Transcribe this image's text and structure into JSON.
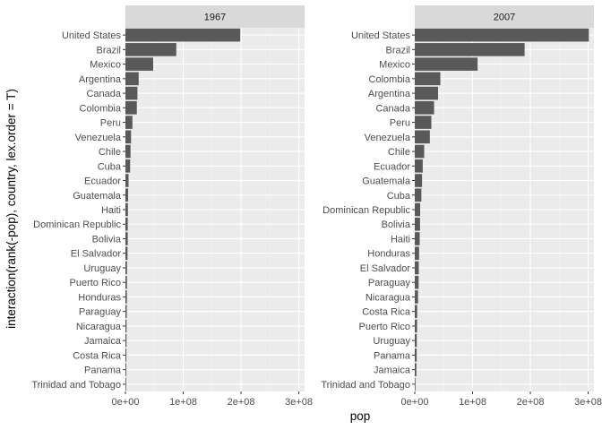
{
  "chart_data": {
    "type": "bar",
    "orientation": "horizontal",
    "xlabel": "pop",
    "ylabel": "interaction(rank(-pop), country, lex.order = T)",
    "xlim": [
      0,
      310000000
    ],
    "xticks": [
      0,
      100000000,
      200000000,
      300000000
    ],
    "xtick_labels": [
      "0e+00",
      "1e+08",
      "2e+08",
      "3e+08"
    ],
    "grid": true,
    "bar_color": "#595959",
    "panel_bg": "#ebebeb",
    "strip_bg": "#d9d9d9",
    "facets": [
      {
        "strip": "1967",
        "categories": [
          "United States",
          "Brazil",
          "Mexico",
          "Argentina",
          "Canada",
          "Colombia",
          "Peru",
          "Venezuela",
          "Chile",
          "Cuba",
          "Ecuador",
          "Guatemala",
          "Haiti",
          "Dominican Republic",
          "Bolivia",
          "El Salvador",
          "Uruguay",
          "Puerto Rico",
          "Honduras",
          "Paraguay",
          "Nicaragua",
          "Jamaica",
          "Costa Rica",
          "Panama",
          "Trinidad and Tobago"
        ],
        "values": [
          198712000,
          88049823,
          47995559,
          22934225,
          20819767,
          19764027,
          12132200,
          9709552,
          8858908,
          8139332,
          5432424,
          4690773,
          4318137,
          4049146,
          4040665,
          3647735,
          2748579,
          2648961,
          2500689,
          2287985,
          1981839,
          1861096,
          1588717,
          1405486,
          960155
        ]
      },
      {
        "strip": "2007",
        "categories": [
          "United States",
          "Brazil",
          "Mexico",
          "Colombia",
          "Argentina",
          "Canada",
          "Peru",
          "Venezuela",
          "Chile",
          "Ecuador",
          "Guatemala",
          "Cuba",
          "Dominican Republic",
          "Bolivia",
          "Haiti",
          "Honduras",
          "El Salvador",
          "Paraguay",
          "Nicaragua",
          "Costa Rica",
          "Puerto Rico",
          "Uruguay",
          "Panama",
          "Jamaica",
          "Trinidad and Tobago"
        ],
        "values": [
          301139947,
          190010647,
          108700891,
          44227550,
          40301927,
          33390141,
          28674757,
          26084662,
          16284741,
          13755680,
          12572928,
          11416987,
          9319622,
          9119152,
          8502814,
          7483763,
          6939688,
          6667147,
          5675356,
          4133884,
          3942491,
          3447496,
          3242173,
          2780132,
          1056608
        ]
      }
    ]
  }
}
